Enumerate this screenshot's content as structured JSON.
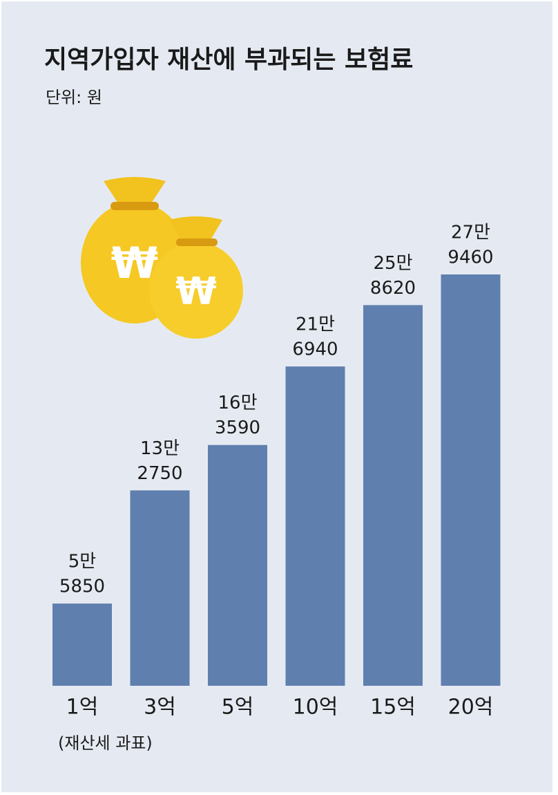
{
  "chart_data": {
    "type": "bar",
    "title": "지역가입자 재산에 부과되는 보험료",
    "subtitle": "단위: 원",
    "x_label": "(재산세 과표)",
    "categories": [
      "1억",
      "3억",
      "5억",
      "10억",
      "15억",
      "20억"
    ],
    "values": [
      55850,
      132750,
      163590,
      216940,
      258620,
      279460
    ],
    "value_labels": [
      [
        "5만",
        "5850"
      ],
      [
        "13만",
        "2750"
      ],
      [
        "16만",
        "3590"
      ],
      [
        "21만",
        "6940"
      ],
      [
        "25만",
        "8620"
      ],
      [
        "27만",
        "9460"
      ]
    ],
    "color": "#5f7fae"
  }
}
